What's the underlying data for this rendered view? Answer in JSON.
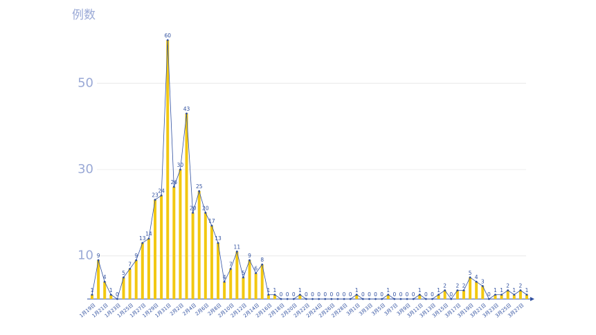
{
  "chart_data": {
    "type": "bar-line",
    "y_label": "例数",
    "categories": [
      "1月19日",
      null,
      "1月21日",
      null,
      "1月23日",
      null,
      "1月25日",
      null,
      "1月27日",
      null,
      "1月29日",
      null,
      "1月31日",
      null,
      "2月2日",
      null,
      "2月4日",
      null,
      "2月6日",
      null,
      "2月8日",
      null,
      "2月10日",
      null,
      "2月12日",
      null,
      "2月14日",
      null,
      "2月16日",
      null,
      "2月18日",
      null,
      "2月20日",
      null,
      "2月22日",
      null,
      "2月24日",
      null,
      "2月26日",
      null,
      "2月28日",
      null,
      "3月1日",
      null,
      "3月3日",
      null,
      "3月5日",
      null,
      "3月7日",
      null,
      "3月9日",
      null,
      "3月11日",
      null,
      "3月13日",
      null,
      "3月15日",
      null,
      "3月17日",
      null,
      "3月19日",
      null,
      "3月21日",
      null,
      "3月23日",
      null,
      "3月25日",
      null,
      "3月27日",
      null
    ],
    "values": [
      1,
      9,
      4,
      1,
      0,
      5,
      7,
      9,
      13,
      14,
      23,
      24,
      60,
      26,
      30,
      43,
      20,
      25,
      20,
      17,
      13,
      4,
      7,
      11,
      5,
      9,
      6,
      8,
      1,
      1,
      0,
      0,
      0,
      1,
      0,
      0,
      0,
      0,
      0,
      0,
      0,
      0,
      1,
      0,
      0,
      0,
      0,
      1,
      0,
      0,
      0,
      0,
      1,
      0,
      0,
      1,
      2,
      0,
      2,
      2,
      5,
      4,
      3,
      0,
      1,
      1,
      2,
      1,
      2,
      1
    ],
    "bar_color": "#f2c811",
    "line_color": "#2f4f9f",
    "ylim": [
      0,
      60
    ],
    "yticks": [
      10,
      30,
      50
    ],
    "grid": true
  }
}
